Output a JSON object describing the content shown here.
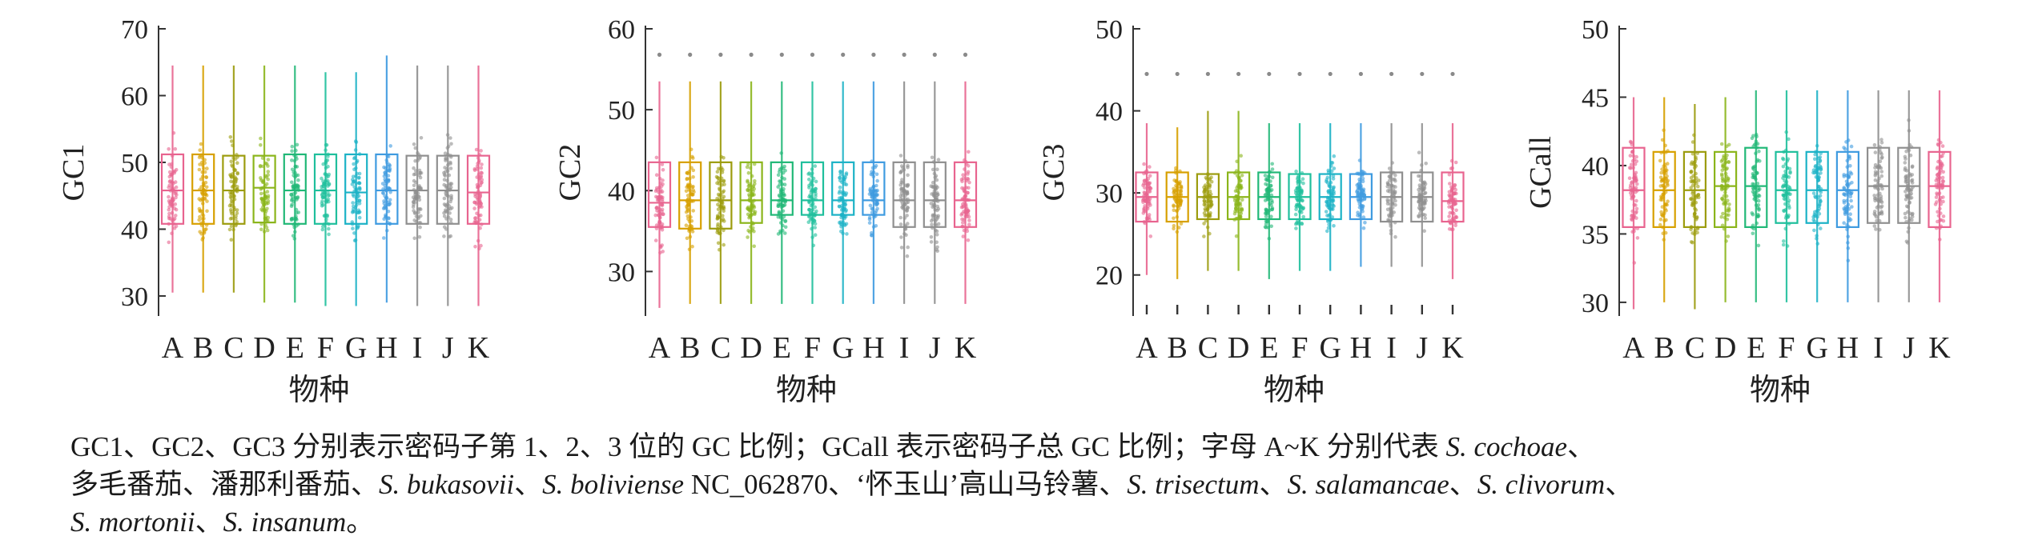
{
  "chart_data": [
    {
      "type": "box",
      "ylabel": "GC1",
      "xlabel": "物种",
      "ylim": [
        27,
        70
      ],
      "yticks": [
        30,
        40,
        50,
        60,
        70
      ],
      "categories": [
        "A",
        "B",
        "C",
        "D",
        "E",
        "F",
        "G",
        "H",
        "I",
        "J",
        "K"
      ],
      "boxes": [
        {
          "q1": 40.8,
          "median": 45.8,
          "q3": 51.2,
          "whisker_low": 30.5,
          "whisker_high": 64.5,
          "outliers": []
        },
        {
          "q1": 40.8,
          "median": 45.8,
          "q3": 51.2,
          "whisker_low": 30.5,
          "whisker_high": 64.5,
          "outliers": []
        },
        {
          "q1": 40.8,
          "median": 45.8,
          "q3": 51.0,
          "whisker_low": 30.5,
          "whisker_high": 64.5,
          "outliers": []
        },
        {
          "q1": 41.0,
          "median": 46.2,
          "q3": 51.0,
          "whisker_low": 29.0,
          "whisker_high": 64.5,
          "outliers": []
        },
        {
          "q1": 40.8,
          "median": 45.8,
          "q3": 51.2,
          "whisker_low": 29.0,
          "whisker_high": 64.5,
          "outliers": []
        },
        {
          "q1": 40.8,
          "median": 45.8,
          "q3": 51.2,
          "whisker_low": 28.5,
          "whisker_high": 63.5,
          "outliers": []
        },
        {
          "q1": 40.8,
          "median": 45.5,
          "q3": 51.2,
          "whisker_low": 28.5,
          "whisker_high": 63.5,
          "outliers": []
        },
        {
          "q1": 40.8,
          "median": 45.8,
          "q3": 51.2,
          "whisker_low": 29.0,
          "whisker_high": 66.0,
          "outliers": []
        },
        {
          "q1": 40.8,
          "median": 45.8,
          "q3": 51.0,
          "whisker_low": 28.5,
          "whisker_high": 64.5,
          "outliers": []
        },
        {
          "q1": 40.8,
          "median": 45.8,
          "q3": 51.0,
          "whisker_low": 28.5,
          "whisker_high": 64.5,
          "outliers": []
        },
        {
          "q1": 40.8,
          "median": 45.5,
          "q3": 51.0,
          "whisker_low": 28.5,
          "whisker_high": 64.5,
          "outliers": []
        }
      ],
      "grid": false,
      "legend": "none"
    },
    {
      "type": "box",
      "ylabel": "GC2",
      "xlabel": "物种",
      "ylim": [
        24.5,
        60
      ],
      "yticks": [
        30,
        40,
        50,
        60
      ],
      "categories": [
        "A",
        "B",
        "C",
        "D",
        "E",
        "F",
        "G",
        "H",
        "I",
        "J",
        "K"
      ],
      "boxes": [
        {
          "q1": 35.5,
          "median": 38.5,
          "q3": 43.5,
          "whisker_low": 25.5,
          "whisker_high": 53.5,
          "outliers": [
            56.8
          ]
        },
        {
          "q1": 35.3,
          "median": 38.8,
          "q3": 43.5,
          "whisker_low": 26.0,
          "whisker_high": 53.5,
          "outliers": [
            56.8
          ]
        },
        {
          "q1": 35.3,
          "median": 38.8,
          "q3": 43.5,
          "whisker_low": 26.0,
          "whisker_high": 53.5,
          "outliers": [
            56.8
          ]
        },
        {
          "q1": 36.0,
          "median": 38.8,
          "q3": 43.5,
          "whisker_low": 26.0,
          "whisker_high": 53.5,
          "outliers": [
            56.8
          ]
        },
        {
          "q1": 37.0,
          "median": 38.8,
          "q3": 43.5,
          "whisker_low": 26.0,
          "whisker_high": 53.5,
          "outliers": [
            56.8
          ]
        },
        {
          "q1": 37.0,
          "median": 38.8,
          "q3": 43.5,
          "whisker_low": 26.0,
          "whisker_high": 53.5,
          "outliers": [
            56.8
          ]
        },
        {
          "q1": 37.0,
          "median": 38.8,
          "q3": 43.5,
          "whisker_low": 26.0,
          "whisker_high": 53.5,
          "outliers": [
            56.8
          ]
        },
        {
          "q1": 37.0,
          "median": 38.8,
          "q3": 43.5,
          "whisker_low": 26.0,
          "whisker_high": 53.5,
          "outliers": [
            56.8
          ]
        },
        {
          "q1": 35.5,
          "median": 38.8,
          "q3": 43.5,
          "whisker_low": 26.0,
          "whisker_high": 53.5,
          "outliers": [
            56.8
          ]
        },
        {
          "q1": 35.5,
          "median": 38.8,
          "q3": 43.5,
          "whisker_low": 26.0,
          "whisker_high": 53.5,
          "outliers": [
            56.8
          ]
        },
        {
          "q1": 35.5,
          "median": 38.8,
          "q3": 43.5,
          "whisker_low": 26.0,
          "whisker_high": 53.5,
          "outliers": [
            56.8
          ]
        }
      ],
      "grid": false,
      "legend": "none"
    },
    {
      "type": "box",
      "ylabel": "GC3",
      "xlabel": "物种",
      "ylim": [
        15,
        50
      ],
      "yticks": [
        20,
        30,
        40,
        50
      ],
      "categories": [
        "A",
        "B",
        "C",
        "D",
        "E",
        "F",
        "G",
        "H",
        "I",
        "J",
        "K"
      ],
      "boxes": [
        {
          "q1": 26.5,
          "median": 29.5,
          "q3": 32.5,
          "whisker_low": 20.0,
          "whisker_high": 38.5,
          "outliers": [
            44.5,
            14.5
          ]
        },
        {
          "q1": 26.5,
          "median": 29.5,
          "q3": 32.5,
          "whisker_low": 19.5,
          "whisker_high": 38.0,
          "outliers": [
            44.5,
            14.5
          ]
        },
        {
          "q1": 26.8,
          "median": 29.5,
          "q3": 32.3,
          "whisker_low": 20.5,
          "whisker_high": 40.0,
          "outliers": [
            44.5,
            14.5
          ]
        },
        {
          "q1": 26.8,
          "median": 29.5,
          "q3": 32.5,
          "whisker_low": 20.5,
          "whisker_high": 40.0,
          "outliers": [
            44.5,
            14.5
          ]
        },
        {
          "q1": 26.8,
          "median": 29.5,
          "q3": 32.5,
          "whisker_low": 19.5,
          "whisker_high": 38.5,
          "outliers": [
            44.5,
            14.5
          ]
        },
        {
          "q1": 26.8,
          "median": 29.5,
          "q3": 32.3,
          "whisker_low": 20.5,
          "whisker_high": 38.5,
          "outliers": [
            44.5,
            14.5
          ]
        },
        {
          "q1": 26.8,
          "median": 29.5,
          "q3": 32.3,
          "whisker_low": 20.5,
          "whisker_high": 38.5,
          "outliers": [
            44.5,
            14.5
          ]
        },
        {
          "q1": 26.8,
          "median": 29.5,
          "q3": 32.3,
          "whisker_low": 21.0,
          "whisker_high": 38.5,
          "outliers": [
            44.5,
            14.5
          ]
        },
        {
          "q1": 26.5,
          "median": 29.5,
          "q3": 32.5,
          "whisker_low": 21.0,
          "whisker_high": 38.5,
          "outliers": [
            44.5,
            14.5
          ]
        },
        {
          "q1": 26.5,
          "median": 29.5,
          "q3": 32.5,
          "whisker_low": 21.0,
          "whisker_high": 38.5,
          "outliers": [
            44.5,
            14.5
          ]
        },
        {
          "q1": 26.5,
          "median": 29.0,
          "q3": 32.5,
          "whisker_low": 19.5,
          "whisker_high": 38.5,
          "outliers": [
            44.5,
            14.5
          ]
        }
      ],
      "grid": false,
      "legend": "none"
    },
    {
      "type": "box",
      "ylabel": "GCall",
      "xlabel": "物种",
      "ylim": [
        29,
        50
      ],
      "yticks": [
        30,
        35,
        40,
        45,
        50
      ],
      "categories": [
        "A",
        "B",
        "C",
        "D",
        "E",
        "F",
        "G",
        "H",
        "I",
        "J",
        "K"
      ],
      "boxes": [
        {
          "q1": 35.5,
          "median": 38.2,
          "q3": 41.3,
          "whisker_low": 29.5,
          "whisker_high": 45.0,
          "outliers": []
        },
        {
          "q1": 35.5,
          "median": 38.2,
          "q3": 41.0,
          "whisker_low": 30.0,
          "whisker_high": 45.0,
          "outliers": []
        },
        {
          "q1": 35.5,
          "median": 38.2,
          "q3": 41.0,
          "whisker_low": 29.5,
          "whisker_high": 44.5,
          "outliers": []
        },
        {
          "q1": 35.5,
          "median": 38.5,
          "q3": 41.0,
          "whisker_low": 30.0,
          "whisker_high": 45.0,
          "outliers": []
        },
        {
          "q1": 35.5,
          "median": 38.5,
          "q3": 41.3,
          "whisker_low": 30.0,
          "whisker_high": 45.5,
          "outliers": []
        },
        {
          "q1": 35.8,
          "median": 38.2,
          "q3": 41.0,
          "whisker_low": 30.0,
          "whisker_high": 45.5,
          "outliers": []
        },
        {
          "q1": 35.8,
          "median": 38.2,
          "q3": 41.0,
          "whisker_low": 30.0,
          "whisker_high": 45.5,
          "outliers": []
        },
        {
          "q1": 35.5,
          "median": 38.2,
          "q3": 41.0,
          "whisker_low": 30.0,
          "whisker_high": 45.5,
          "outliers": []
        },
        {
          "q1": 35.8,
          "median": 38.5,
          "q3": 41.3,
          "whisker_low": 30.0,
          "whisker_high": 45.5,
          "outliers": []
        },
        {
          "q1": 35.8,
          "median": 38.5,
          "q3": 41.3,
          "whisker_low": 30.0,
          "whisker_high": 45.5,
          "outliers": []
        },
        {
          "q1": 35.5,
          "median": 38.5,
          "q3": 41.0,
          "whisker_low": 30.0,
          "whisker_high": 45.5,
          "outliers": []
        }
      ],
      "grid": false,
      "legend": "none"
    }
  ],
  "colors": [
    "#e8648f",
    "#d7a000",
    "#9c9c0e",
    "#8bb51b",
    "#21b877",
    "#1fbf9c",
    "#1cb2c6",
    "#3f9be0",
    "#8f8f8f",
    "#8f8f8f",
    "#e8648f"
  ],
  "caption": {
    "line1": [
      {
        "text": "GC1、GC2、GC3 分别表示密码子第 1、2、3 位的 GC 比例；GCall 表示密码子总 GC 比例；字母 A~K 分别代表 ",
        "italic": false
      },
      {
        "text": "S. cochoae",
        "italic": true
      },
      {
        "text": "、",
        "italic": false
      }
    ],
    "line2": [
      {
        "text": "多毛番茄、潘那利番茄、",
        "italic": false
      },
      {
        "text": "S. bukasovii",
        "italic": true
      },
      {
        "text": "、",
        "italic": false
      },
      {
        "text": "S. boliviense",
        "italic": true
      },
      {
        "text": " NC_062870、‘怀玉山’高山马铃薯、",
        "italic": false
      },
      {
        "text": "S. trisectum",
        "italic": true
      },
      {
        "text": "、",
        "italic": false
      },
      {
        "text": "S. salamancae",
        "italic": true
      },
      {
        "text": "、",
        "italic": false
      },
      {
        "text": "S. clivorum",
        "italic": true
      },
      {
        "text": "、",
        "italic": false
      }
    ],
    "line3": [
      {
        "text": "S. mortonii",
        "italic": true
      },
      {
        "text": "、",
        "italic": false
      },
      {
        "text": "S. insanum",
        "italic": true
      },
      {
        "text": "。",
        "italic": false
      }
    ]
  }
}
